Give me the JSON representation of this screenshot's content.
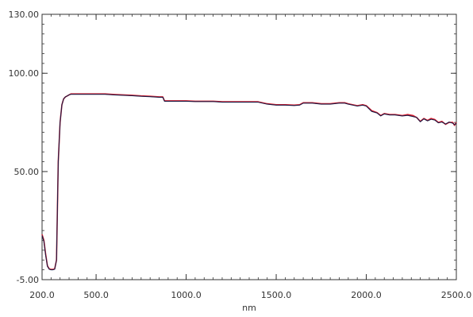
{
  "chart_data": {
    "type": "line",
    "title": "",
    "xlabel": "nm",
    "ylabel": "",
    "xlim": [
      200,
      2500
    ],
    "ylim": [
      -5,
      130
    ],
    "x_ticks": [
      200,
      500,
      1000,
      1500,
      2000,
      2500
    ],
    "x_tick_labels": [
      "200.0",
      "500.0",
      "1000.0",
      "1500.0",
      "2000.0",
      "2500.0"
    ],
    "y_ticks": [
      -5,
      50,
      100,
      130
    ],
    "y_tick_labels": [
      "-5.00",
      "50.00",
      "100.00",
      "130.00"
    ],
    "grid": false,
    "legend": "none",
    "series": [
      {
        "color": "#e02030",
        "x": [
          200,
          210,
          220,
          230,
          240,
          250,
          260,
          270,
          280,
          290,
          300,
          310,
          320,
          330,
          340,
          350,
          360,
          370,
          380,
          390,
          400,
          450,
          500,
          550,
          600,
          650,
          700,
          750,
          800,
          850,
          870,
          880,
          900,
          950,
          1000,
          1050,
          1100,
          1150,
          1200,
          1250,
          1300,
          1350,
          1400,
          1450,
          1500,
          1550,
          1600,
          1630,
          1650,
          1700,
          1750,
          1800,
          1850,
          1880,
          1900,
          1950,
          1980,
          2000,
          2030,
          2060,
          2080,
          2100,
          2130,
          2160,
          2200,
          2230,
          2260,
          2280,
          2300,
          2320,
          2340,
          2360,
          2380,
          2400,
          2420,
          2440,
          2460,
          2480,
          2490,
          2500
        ],
        "y": [
          18,
          15,
          8,
          2,
          0.5,
          0.2,
          0.2,
          0.5,
          5,
          55,
          75,
          84,
          87,
          88,
          88.5,
          89,
          89.5,
          89.5,
          89.5,
          89.5,
          89.5,
          89.5,
          89.5,
          89.5,
          89.2,
          89,
          88.8,
          88.5,
          88.3,
          88,
          88,
          86,
          86,
          86,
          86,
          85.8,
          85.8,
          85.8,
          85.5,
          85.5,
          85.5,
          85.5,
          85.5,
          84.5,
          84,
          84,
          83.8,
          84,
          85,
          85,
          84.5,
          84.5,
          85,
          85,
          84.5,
          83.5,
          84,
          83.5,
          81,
          80,
          78.5,
          79.5,
          79,
          79,
          78.5,
          79,
          78.5,
          77.5,
          75.5,
          77,
          76,
          77,
          76.5,
          75,
          75.5,
          74,
          75,
          75,
          73.5,
          75
        ]
      },
      {
        "color": "#1a1a44",
        "x": [
          200,
          210,
          220,
          230,
          240,
          250,
          260,
          270,
          280,
          290,
          300,
          310,
          320,
          330,
          340,
          350,
          360,
          370,
          380,
          390,
          400,
          450,
          500,
          550,
          600,
          650,
          700,
          750,
          800,
          850,
          870,
          880,
          900,
          950,
          1000,
          1050,
          1100,
          1150,
          1200,
          1250,
          1300,
          1350,
          1400,
          1450,
          1500,
          1550,
          1600,
          1630,
          1650,
          1700,
          1750,
          1800,
          1850,
          1880,
          1900,
          1950,
          1980,
          2000,
          2030,
          2060,
          2080,
          2100,
          2130,
          2160,
          2200,
          2230,
          2260,
          2280,
          2300,
          2320,
          2340,
          2360,
          2380,
          2400,
          2420,
          2440,
          2460,
          2480,
          2490,
          2500
        ],
        "y": [
          17.5,
          14.5,
          7.5,
          1.8,
          0.3,
          0,
          0,
          0.3,
          5,
          55,
          75,
          84,
          87,
          88,
          88.5,
          89,
          89.3,
          89.3,
          89.3,
          89.3,
          89.3,
          89.3,
          89.3,
          89.3,
          89,
          88.8,
          88.6,
          88.3,
          88.1,
          87.8,
          87.8,
          85.8,
          85.8,
          85.8,
          85.8,
          85.6,
          85.6,
          85.6,
          85.3,
          85.3,
          85.3,
          85.3,
          85.3,
          84.3,
          83.8,
          83.8,
          83.6,
          83.8,
          84.8,
          84.8,
          84.3,
          84.3,
          84.8,
          84.8,
          84.3,
          83.3,
          83.8,
          83.3,
          80.6,
          79.8,
          78.3,
          79.3,
          78.8,
          78.8,
          78.3,
          78.6,
          78,
          77.5,
          75.3,
          76.8,
          75.8,
          76.6,
          76.2,
          74.8,
          75.2,
          74.2,
          75.2,
          74.6,
          73.8,
          74.6
        ]
      }
    ]
  }
}
